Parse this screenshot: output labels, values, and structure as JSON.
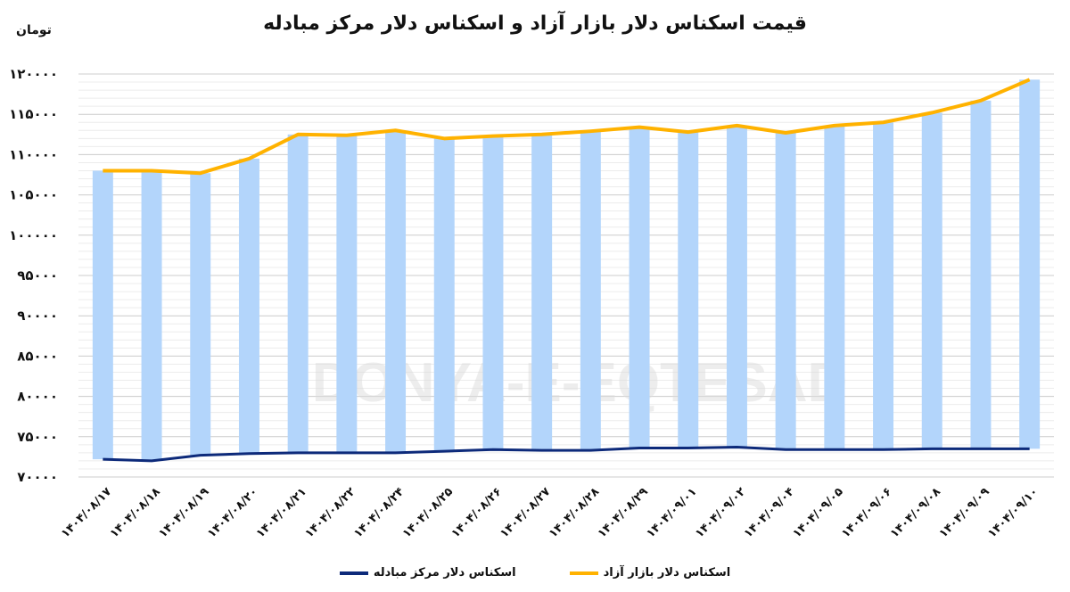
{
  "title": "قیمت اسکناس دلار بازار آزاد و اسکناس دلار مرکز مبادله",
  "unit_label": "تومان",
  "watermark": "DONYA-E-EQTESAD",
  "colors": {
    "bar": "#b3d5fb",
    "free_market": "#ffb200",
    "exchange_center": "#0d2a7a",
    "grid_major": "#cccccc",
    "grid_minor": "#ececec"
  },
  "legend": [
    {
      "label": "اسکناس دلار بازار آزاد",
      "color": "#ffb200"
    },
    {
      "label": "اسکناس دلار مرکز مبادله",
      "color": "#0d2a7a"
    }
  ],
  "chart_data": {
    "type": "bar",
    "title": "قیمت اسکناس دلار بازار آزاد و اسکناس دلار مرکز مبادله",
    "ylabel": "تومان",
    "xlabel": "",
    "ylim": [
      70000,
      120000
    ],
    "yticks": [
      70000,
      75000,
      80000,
      85000,
      90000,
      95000,
      100000,
      105000,
      110000,
      115000,
      120000
    ],
    "ytick_labels": [
      "۷۰۰۰۰",
      "۷۵۰۰۰",
      "۸۰۰۰۰",
      "۸۵۰۰۰",
      "۹۰۰۰۰",
      "۹۵۰۰۰",
      "۱۰۰۰۰۰",
      "۱۰۵۰۰۰",
      "۱۱۰۰۰۰",
      "۱۱۵۰۰۰",
      "۱۲۰۰۰۰"
    ],
    "grid": true,
    "legend_position": "bottom",
    "categories": [
      "۱۴۰۴/۰۸/۱۷",
      "۱۴۰۴/۰۸/۱۸",
      "۱۴۰۴/۰۸/۱۹",
      "۱۴۰۴/۰۸/۲۰",
      "۱۴۰۴/۰۸/۲۱",
      "۱۴۰۴/۰۸/۲۲",
      "۱۴۰۴/۰۸/۲۴",
      "۱۴۰۴/۰۸/۲۵",
      "۱۴۰۴/۰۸/۲۶",
      "۱۴۰۴/۰۸/۲۷",
      "۱۴۰۴/۰۸/۲۸",
      "۱۴۰۴/۰۸/۲۹",
      "۱۴۰۴/۰۹/۰۱",
      "۱۴۰۴/۰۹/۰۲",
      "۱۴۰۴/۰۹/۰۴",
      "۱۴۰۴/۰۹/۰۵",
      "۱۴۰۴/۰۹/۰۶",
      "۱۴۰۴/۰۹/۰۸",
      "۱۴۰۴/۰۹/۰۹",
      "۱۴۰۴/۰۹/۱۰"
    ],
    "series": [
      {
        "name": "اسکناس دلار بازار آزاد",
        "type": "line+bar",
        "color": "#ffb200",
        "values": [
          108000,
          108000,
          107700,
          109500,
          112500,
          112400,
          113000,
          112000,
          112300,
          112500,
          112900,
          113400,
          112800,
          113600,
          112700,
          113600,
          114000,
          115200,
          116700,
          119300
        ]
      },
      {
        "name": "اسکناس دلار مرکز مبادله",
        "type": "line",
        "color": "#0d2a7a",
        "values": [
          72200,
          72000,
          72700,
          72900,
          73000,
          73000,
          73000,
          73200,
          73400,
          73300,
          73300,
          73600,
          73600,
          73700,
          73400,
          73400,
          73400,
          73500,
          73500,
          73500
        ]
      }
    ]
  }
}
